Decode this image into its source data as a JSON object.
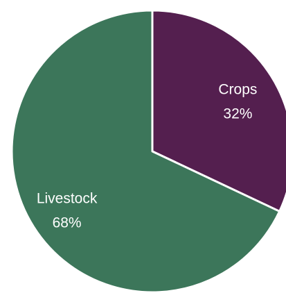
{
  "chart_data": {
    "type": "pie",
    "title": "",
    "slices": [
      {
        "label": "Crops",
        "value": 32,
        "value_label": "32%",
        "color": "#541f4f"
      },
      {
        "label": "Livestock",
        "value": 68,
        "value_label": "68%",
        "color": "#3c765a"
      }
    ],
    "start_angle": "12 o'clock",
    "direction": "clockwise",
    "slice_border_color": "#ffffff",
    "legend": "none"
  }
}
